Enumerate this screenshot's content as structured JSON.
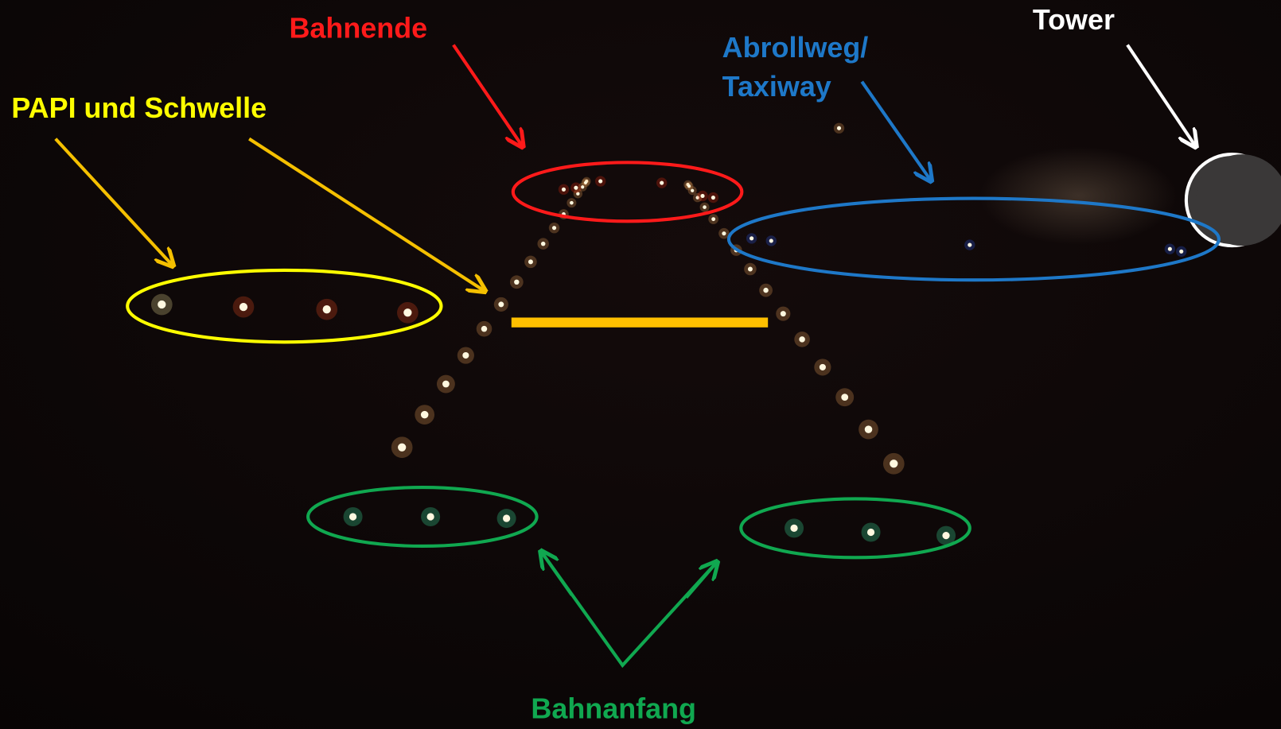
{
  "annotations": {
    "bahnende": "Bahnende",
    "papi": "PAPI und Schwelle",
    "abrollweg": [
      "Abrollweg/",
      "Taxiway"
    ],
    "tower": "Tower",
    "bahnanfang": "Bahnanfang"
  }
}
